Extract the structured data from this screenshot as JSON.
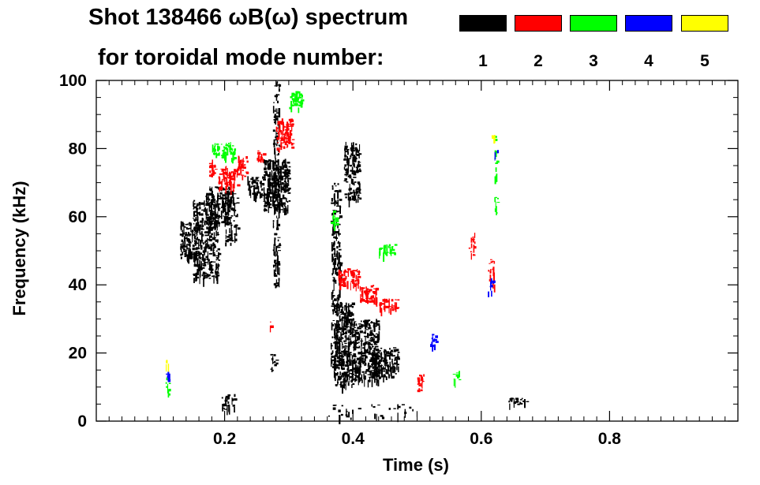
{
  "header": {
    "title_line1": "Shot 138466 ωB(ω) spectrum",
    "title_line2": "for toroidal mode number:"
  },
  "legend": {
    "modes": [
      {
        "label": "1",
        "color": "#000000"
      },
      {
        "label": "2",
        "color": "#ff0000"
      },
      {
        "label": "3",
        "color": "#00ff00"
      },
      {
        "label": "4",
        "color": "#0000ff"
      },
      {
        "label": "5",
        "color": "#ffff00"
      }
    ]
  },
  "chart_data": {
    "type": "heatmap",
    "title": "Shot 138466 ωB(ω) spectrum for toroidal mode number",
    "xlabel": "Time (s)",
    "ylabel": "Frequency (kHz)",
    "xlim": [
      0.0,
      1.0
    ],
    "ylim": [
      0,
      100
    ],
    "xticks": [
      0.2,
      0.4,
      0.6,
      0.8
    ],
    "xtick_labels": [
      "0.2",
      "0.4",
      "0.6",
      "0.8"
    ],
    "yticks": [
      0,
      20,
      40,
      60,
      80,
      100
    ],
    "ytick_labels": [
      "0",
      "20",
      "40",
      "60",
      "80",
      "100"
    ],
    "series": [
      {
        "name": "n=1",
        "color": "#000000",
        "regions": [
          {
            "t": [
              0.13,
              0.16
            ],
            "f": [
              48,
              59
            ],
            "density": 0.75
          },
          {
            "t": [
              0.15,
              0.19
            ],
            "f": [
              42,
              65
            ],
            "density": 0.7
          },
          {
            "t": [
              0.17,
              0.21
            ],
            "f": [
              58,
              69
            ],
            "density": 0.7
          },
          {
            "t": [
              0.2,
              0.22
            ],
            "f": [
              52,
              68
            ],
            "density": 0.45
          },
          {
            "t": [
              0.235,
              0.26
            ],
            "f": [
              66,
              72
            ],
            "density": 0.75
          },
          {
            "t": [
              0.26,
              0.3
            ],
            "f": [
              62,
              77
            ],
            "density": 0.85
          },
          {
            "t": [
              0.275,
              0.285
            ],
            "f": [
              40,
              100
            ],
            "density": 0.5
          },
          {
            "t": [
              0.365,
              0.38
            ],
            "f": [
              15,
              70
            ],
            "density": 0.45
          },
          {
            "t": [
              0.37,
              0.4
            ],
            "f": [
              10,
              35
            ],
            "density": 0.85
          },
          {
            "t": [
              0.385,
              0.41
            ],
            "f": [
              65,
              82
            ],
            "density": 0.7
          },
          {
            "t": [
              0.4,
              0.44
            ],
            "f": [
              12,
              30
            ],
            "density": 0.85
          },
          {
            "t": [
              0.43,
              0.47
            ],
            "f": [
              13,
              22
            ],
            "density": 0.8
          },
          {
            "t": [
              0.195,
              0.215
            ],
            "f": [
              3,
              8
            ],
            "density": 0.5
          },
          {
            "t": [
              0.27,
              0.28
            ],
            "f": [
              14,
              20
            ],
            "density": 0.4
          },
          {
            "t": [
              0.64,
              0.67
            ],
            "f": [
              5,
              7
            ],
            "density": 0.7
          },
          {
            "t": [
              0.36,
              0.5
            ],
            "f": [
              1,
              5
            ],
            "density": 0.12
          }
        ]
      },
      {
        "name": "n=2",
        "color": "#ff0000",
        "regions": [
          {
            "t": [
              0.175,
              0.185
            ],
            "f": [
              72,
              77
            ],
            "density": 0.8
          },
          {
            "t": [
              0.19,
              0.22
            ],
            "f": [
              68,
              75
            ],
            "density": 0.7
          },
          {
            "t": [
              0.22,
              0.235
            ],
            "f": [
              72,
              78
            ],
            "density": 0.7
          },
          {
            "t": [
              0.25,
              0.26
            ],
            "f": [
              76,
              80
            ],
            "density": 0.6
          },
          {
            "t": [
              0.28,
              0.305
            ],
            "f": [
              80,
              89
            ],
            "density": 0.9
          },
          {
            "t": [
              0.375,
              0.41
            ],
            "f": [
              40,
              45
            ],
            "density": 0.85
          },
          {
            "t": [
              0.41,
              0.44
            ],
            "f": [
              35,
              40
            ],
            "density": 0.75
          },
          {
            "t": [
              0.44,
              0.47
            ],
            "f": [
              33,
              36
            ],
            "density": 0.7
          },
          {
            "t": [
              0.5,
              0.51
            ],
            "f": [
              8,
              14
            ],
            "density": 0.7
          },
          {
            "t": [
              0.27,
              0.272
            ],
            "f": [
              27,
              30
            ],
            "density": 0.6
          },
          {
            "t": [
              0.58,
              0.59
            ],
            "f": [
              48,
              56
            ],
            "density": 0.4
          },
          {
            "t": [
              0.61,
              0.62
            ],
            "f": [
              40,
              48
            ],
            "density": 0.4
          }
        ]
      },
      {
        "name": "n=3",
        "color": "#00ff00",
        "regions": [
          {
            "t": [
              0.18,
              0.2
            ],
            "f": [
              78,
              82
            ],
            "density": 0.6
          },
          {
            "t": [
              0.195,
              0.215
            ],
            "f": [
              77,
              82
            ],
            "density": 0.75
          },
          {
            "t": [
              0.3,
              0.32
            ],
            "f": [
              92,
              97
            ],
            "density": 0.8
          },
          {
            "t": [
              0.44,
              0.465
            ],
            "f": [
              49,
              52
            ],
            "density": 0.8
          },
          {
            "t": [
              0.365,
              0.375
            ],
            "f": [
              58,
              62
            ],
            "density": 0.6
          },
          {
            "t": [
              0.62,
              0.625
            ],
            "f": [
              60,
              84
            ],
            "density": 0.4
          },
          {
            "t": [
              0.555,
              0.565
            ],
            "f": [
              12,
              15
            ],
            "density": 0.5
          },
          {
            "t": [
              0.108,
              0.114
            ],
            "f": [
              8,
              14
            ],
            "density": 0.5
          }
        ]
      },
      {
        "name": "n=4",
        "color": "#0000ff",
        "regions": [
          {
            "t": [
              0.52,
              0.53
            ],
            "f": [
              22,
              26
            ],
            "density": 0.7
          },
          {
            "t": [
              0.108,
              0.114
            ],
            "f": [
              12,
              15
            ],
            "density": 0.7
          },
          {
            "t": [
              0.61,
              0.62
            ],
            "f": [
              38,
              42
            ],
            "density": 0.4
          },
          {
            "t": [
              0.62,
              0.625
            ],
            "f": [
              78,
              81
            ],
            "density": 0.5
          }
        ]
      },
      {
        "name": "n=5",
        "color": "#ffff00",
        "regions": [
          {
            "t": [
              0.107,
              0.112
            ],
            "f": [
              16,
              19
            ],
            "density": 0.7
          },
          {
            "t": [
              0.615,
              0.62
            ],
            "f": [
              83,
              86
            ],
            "density": 0.5
          }
        ]
      }
    ]
  }
}
